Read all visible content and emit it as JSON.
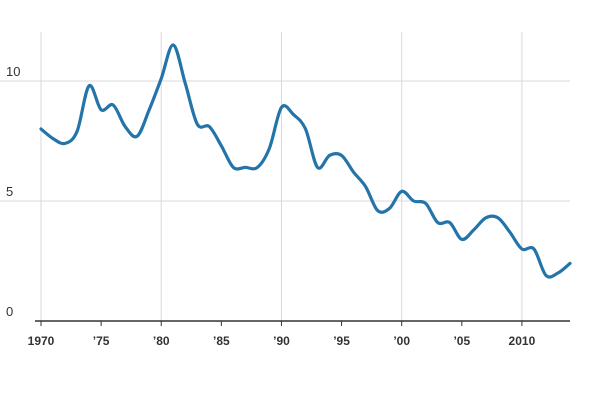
{
  "chart_data": {
    "type": "line",
    "title": "",
    "xlabel": "",
    "ylabel": "",
    "x": [
      1970,
      1971,
      1972,
      1973,
      1974,
      1975,
      1976,
      1977,
      1978,
      1979,
      1980,
      1981,
      1982,
      1983,
      1984,
      1985,
      1986,
      1987,
      1988,
      1989,
      1990,
      1991,
      1992,
      1993,
      1994,
      1995,
      1996,
      1997,
      1998,
      1999,
      2000,
      2001,
      2002,
      2003,
      2004,
      2005,
      2006,
      2007,
      2008,
      2009,
      2010,
      2011,
      2012,
      2013,
      2014
    ],
    "series": [
      {
        "name": "",
        "color": "#2574a9",
        "values": [
          8.0,
          7.6,
          7.4,
          7.9,
          9.8,
          8.8,
          9.0,
          8.1,
          7.7,
          8.8,
          10.1,
          11.5,
          9.9,
          8.2,
          8.1,
          7.3,
          6.4,
          6.4,
          6.4,
          7.2,
          8.9,
          8.6,
          8.0,
          6.4,
          6.9,
          6.9,
          6.2,
          5.6,
          4.6,
          4.7,
          5.4,
          5.0,
          4.9,
          4.1,
          4.1,
          3.4,
          3.8,
          4.3,
          4.3,
          3.7,
          3.0,
          3.0,
          1.9,
          2.0,
          2.4
        ]
      }
    ],
    "xlim": [
      1970,
      2014
    ],
    "ylim": [
      0,
      12
    ],
    "yticks": [
      {
        "value": 0,
        "label": "0"
      },
      {
        "value": 5,
        "label": "5"
      },
      {
        "value": 10,
        "label": "10"
      }
    ],
    "xticks": [
      {
        "value": 1970,
        "label": "1970"
      },
      {
        "value": 1975,
        "label": "’75"
      },
      {
        "value": 1980,
        "label": "’80"
      },
      {
        "value": 1985,
        "label": "’85"
      },
      {
        "value": 1990,
        "label": "’90"
      },
      {
        "value": 1995,
        "label": "’95"
      },
      {
        "value": 2000,
        "label": "’00"
      },
      {
        "value": 2005,
        "label": "’05"
      },
      {
        "value": 2010,
        "label": "2010"
      }
    ],
    "grid": true,
    "legend": "none"
  }
}
